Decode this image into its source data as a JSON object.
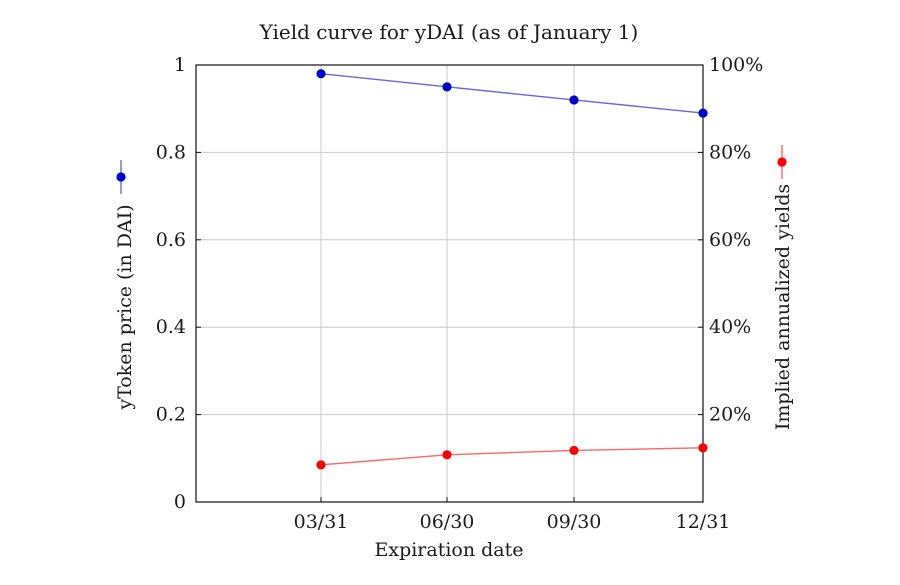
{
  "chart_data": {
    "type": "line",
    "title": "Yield curve for yDAI (as of January 1)",
    "xlabel": "Expiration date",
    "categories": [
      "03/31",
      "06/30",
      "09/30",
      "12/31"
    ],
    "ylabel_left": "yToken price (in DAI)",
    "ylabel_right": "Implied annualized yields",
    "y_left_ticks": [
      "0",
      "0.2",
      "0.4",
      "0.6",
      "0.8",
      "1"
    ],
    "y_right_ticks": [
      "20%",
      "40%",
      "60%",
      "80%",
      "100%"
    ],
    "ylim_left": [
      0,
      1
    ],
    "ylim_right": [
      0,
      100
    ],
    "grid": true,
    "series": [
      {
        "axis": "left",
        "color": "#0000cc",
        "line_color": "#6666e6",
        "values": [
          0.98,
          0.95,
          0.92,
          0.89
        ]
      },
      {
        "axis": "right",
        "color": "#ff0000",
        "line_color": "#ff6666",
        "values": [
          8.5,
          10.8,
          11.8,
          12.4
        ]
      }
    ],
    "legend": "outside-left and outside-right (marker samples beside axis labels)"
  }
}
